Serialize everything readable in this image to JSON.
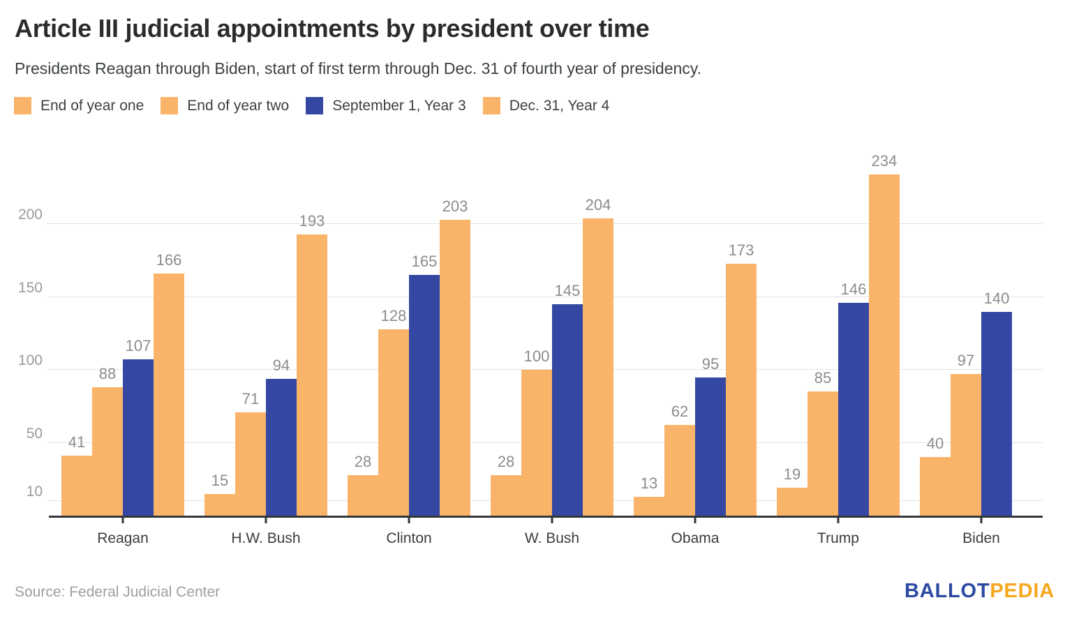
{
  "header": {
    "title": "Article III judicial appointments by president over time",
    "subtitle": "Presidents Reagan through Biden, start of first term through Dec. 31 of fourth year of presidency."
  },
  "chart_data": {
    "type": "bar",
    "title": "Article III judicial appointments by president over time",
    "categories": [
      "Reagan",
      "H.W. Bush",
      "Clinton",
      "W. Bush",
      "Obama",
      "Trump",
      "Biden"
    ],
    "series": [
      {
        "name": "End of year one",
        "color": "#fab469",
        "values": [
          41,
          15,
          28,
          28,
          13,
          19,
          40
        ]
      },
      {
        "name": "End of year two",
        "color": "#fab469",
        "values": [
          88,
          71,
          128,
          100,
          62,
          85,
          97
        ]
      },
      {
        "name": "September 1, Year 3",
        "color": "#3447a3",
        "values": [
          107,
          94,
          165,
          145,
          95,
          146,
          140
        ]
      },
      {
        "name": "Dec. 31, Year 4",
        "color": "#fab469",
        "values": [
          166,
          193,
          203,
          204,
          173,
          234,
          null
        ]
      }
    ],
    "y_ticks": [
      10,
      50,
      100,
      150,
      200
    ],
    "ylim": [
      0,
      258
    ],
    "grid": "horizontal",
    "legend_position": "top",
    "value_labels": true,
    "xlabel": "",
    "ylabel": ""
  },
  "footer": {
    "source": "Source: Federal Judicial Center",
    "logo_part1": "BALLOT",
    "logo_part2": "PEDIA"
  },
  "colors": {
    "orange": "#fab469",
    "blue": "#3447a3",
    "axis": "#323639",
    "gridline": "#e3e3e3",
    "value_label": "#8c8c8c",
    "y_tick_label": "#9a9a9a",
    "x_label": "#3c3c3c",
    "logo_blue": "#2c49a2",
    "logo_orange": "#f5a71e"
  }
}
